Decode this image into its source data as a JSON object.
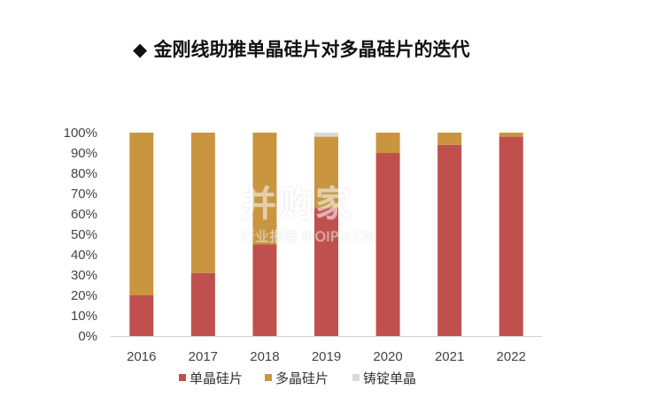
{
  "chart_data": {
    "type": "bar",
    "stacked": true,
    "title": "◆ 金刚线助推单晶硅片对多晶硅片的迭代",
    "categories": [
      "2016",
      "2017",
      "2018",
      "2019",
      "2020",
      "2021",
      "2022"
    ],
    "series": [
      {
        "name": "单晶硅片",
        "color": "#c0504d",
        "values": [
          20,
          31,
          45,
          63,
          90,
          94,
          98
        ]
      },
      {
        "name": "多晶硅片",
        "color": "#c9953f",
        "values": [
          80,
          69,
          55,
          35,
          10,
          6,
          2
        ]
      },
      {
        "name": "铸锭单晶",
        "color": "#d9d9d9",
        "values": [
          0,
          0,
          0,
          2,
          0,
          0,
          0
        ]
      }
    ],
    "yticks": [
      "0%",
      "10%",
      "20%",
      "30%",
      "40%",
      "50%",
      "60%",
      "70%",
      "80%",
      "90%",
      "100%"
    ],
    "ylim": [
      0,
      100
    ],
    "legend_position": "bottom",
    "grid": false
  },
  "watermark": {
    "main": "并购家",
    "sub": "行业报告 IPOIPO.CN"
  }
}
